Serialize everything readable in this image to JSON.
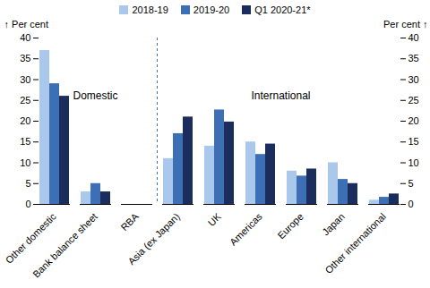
{
  "chart_data": {
    "type": "bar",
    "categories": [
      "Other domestic",
      "Bank balance sheet",
      "RBA",
      "Asia (ex Japan)",
      "UK",
      "Americas",
      "Europe",
      "Japan",
      "Other international"
    ],
    "series": [
      {
        "name": "2018-19",
        "color": "#a9c8eb",
        "values": [
          37,
          3,
          0,
          11,
          14,
          15,
          8,
          10,
          1
        ]
      },
      {
        "name": "2019-20",
        "color": "#3d6fb5",
        "values": [
          29,
          5,
          0,
          17,
          22.7,
          12,
          6.8,
          6,
          1.7
        ]
      },
      {
        "name": "Q1 2020-21*",
        "color": "#1b2d5c",
        "values": [
          26,
          3,
          0,
          21,
          19.8,
          14.5,
          8.5,
          5,
          2.5
        ]
      }
    ],
    "ylim": [
      0,
      40
    ],
    "yticks": [
      0,
      5,
      10,
      15,
      20,
      25,
      30,
      35,
      40
    ],
    "y_label": "Per cent",
    "annotations": [
      "Domestic",
      "International"
    ],
    "legend": "top"
  }
}
